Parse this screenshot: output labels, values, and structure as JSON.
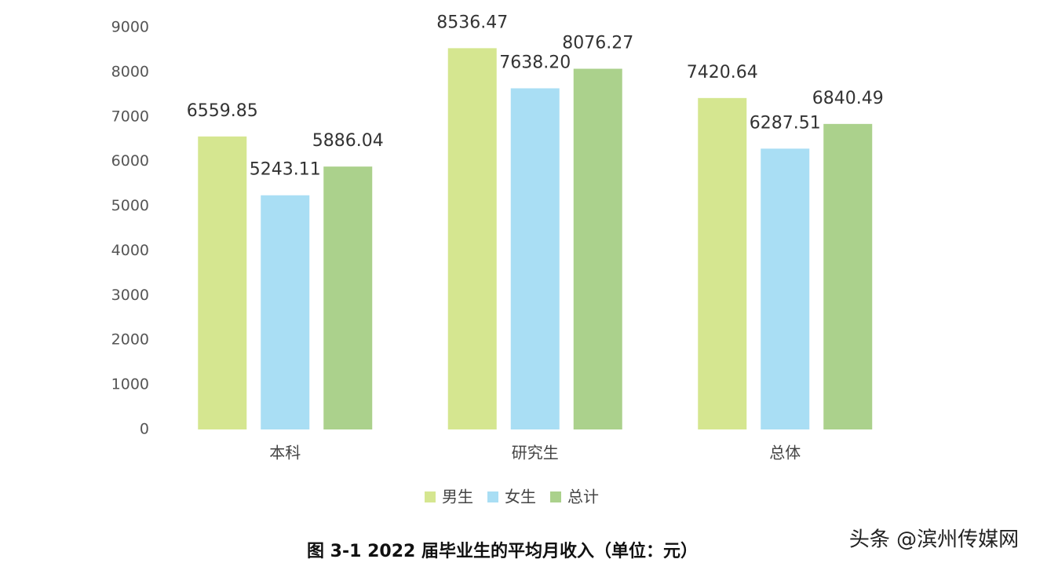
{
  "chart_data": {
    "type": "bar",
    "title": "图 3-1   2022 届毕业生的平均月收入（单位：元）",
    "watermark": "头条 @滨州传媒网",
    "categories": [
      "本科",
      "研究生",
      "总体"
    ],
    "series": [
      {
        "name": "男生",
        "color": "#d5e690",
        "values": [
          6559.85,
          8536.47,
          7420.64
        ],
        "value_labels": [
          "6559.85",
          "8536.47",
          "7420.64"
        ]
      },
      {
        "name": "女生",
        "color": "#a9def4",
        "values": [
          5243.11,
          7638.2,
          6287.51
        ],
        "value_labels": [
          "5243.11",
          "7638.20",
          "6287.51"
        ]
      },
      {
        "name": "总计",
        "color": "#abd18c",
        "values": [
          5886.04,
          8076.27,
          6840.49
        ],
        "value_labels": [
          "5886.04",
          "8076.27",
          "6840.49"
        ]
      }
    ],
    "ylim": [
      0,
      9000
    ],
    "yticks": [
      0,
      1000,
      2000,
      3000,
      4000,
      5000,
      6000,
      7000,
      8000,
      9000
    ],
    "grid": false,
    "legend": "bottom"
  }
}
